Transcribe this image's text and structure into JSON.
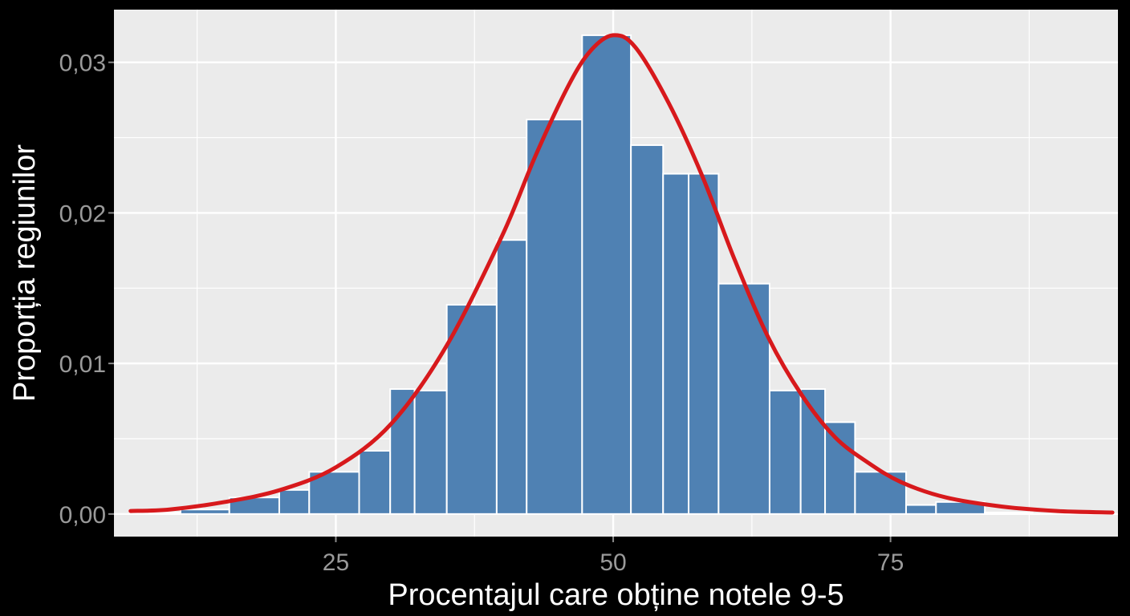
{
  "chart_data": {
    "type": "bar",
    "xlabel": "Procentajul care obține notele 9-5",
    "ylabel": "Proporția regiunilor",
    "xlim": [
      5,
      95.5
    ],
    "ylim": [
      -0.0015,
      0.0335
    ],
    "x_ticks": [
      {
        "value": 25,
        "label": "25"
      },
      {
        "value": 50,
        "label": "50"
      },
      {
        "value": 75,
        "label": "75"
      }
    ],
    "y_ticks": [
      {
        "value": 0,
        "label": "0,00"
      },
      {
        "value": 0.01,
        "label": "0,01"
      },
      {
        "value": 0.02,
        "label": "0,02"
      },
      {
        "value": 0.03,
        "label": "0,03"
      }
    ],
    "x_minor_grid": [
      12.5,
      37.5,
      62.5,
      87.5
    ],
    "y_minor_grid": [
      0.005,
      0.015,
      0.025
    ],
    "bins": [
      {
        "x0": 8.2,
        "x1": 11.0,
        "value": 0.0001
      },
      {
        "x0": 11.0,
        "x1": 15.4,
        "value": 0.0003
      },
      {
        "x0": 15.4,
        "x1": 19.9,
        "value": 0.0011
      },
      {
        "x0": 19.9,
        "x1": 22.6,
        "value": 0.0016
      },
      {
        "x0": 22.6,
        "x1": 27.1,
        "value": 0.0028
      },
      {
        "x0": 27.1,
        "x1": 29.9,
        "value": 0.0042
      },
      {
        "x0": 29.9,
        "x1": 32.1,
        "value": 0.0083
      },
      {
        "x0": 32.1,
        "x1": 35.0,
        "value": 0.0082
      },
      {
        "x0": 35.0,
        "x1": 39.5,
        "value": 0.0139
      },
      {
        "x0": 39.5,
        "x1": 42.2,
        "value": 0.0182
      },
      {
        "x0": 42.2,
        "x1": 47.2,
        "value": 0.0262
      },
      {
        "x0": 47.2,
        "x1": 51.6,
        "value": 0.0318
      },
      {
        "x0": 51.6,
        "x1": 54.5,
        "value": 0.0245
      },
      {
        "x0": 54.5,
        "x1": 56.8,
        "value": 0.0226
      },
      {
        "x0": 56.8,
        "x1": 59.5,
        "value": 0.0226
      },
      {
        "x0": 59.5,
        "x1": 64.1,
        "value": 0.0153
      },
      {
        "x0": 64.1,
        "x1": 66.9,
        "value": 0.0082
      },
      {
        "x0": 66.9,
        "x1": 69.1,
        "value": 0.0083
      },
      {
        "x0": 69.1,
        "x1": 71.8,
        "value": 0.0061
      },
      {
        "x0": 71.8,
        "x1": 76.4,
        "value": 0.0028
      },
      {
        "x0": 76.4,
        "x1": 79.1,
        "value": 0.0006
      },
      {
        "x0": 79.1,
        "x1": 83.5,
        "value": 0.0008
      },
      {
        "x0": 83.5,
        "x1": 87.8,
        "value": 0.0001
      }
    ],
    "density_curve": {
      "color": "#d7191c",
      "points": [
        [
          6.5,
          0.0002
        ],
        [
          10,
          0.0003
        ],
        [
          15,
          0.0008
        ],
        [
          20,
          0.0016
        ],
        [
          25,
          0.0031
        ],
        [
          30,
          0.006
        ],
        [
          35,
          0.0112
        ],
        [
          40,
          0.0185
        ],
        [
          43,
          0.0238
        ],
        [
          46,
          0.0285
        ],
        [
          48,
          0.0308
        ],
        [
          50,
          0.0318
        ],
        [
          52,
          0.031
        ],
        [
          55,
          0.0273
        ],
        [
          58,
          0.0225
        ],
        [
          61,
          0.0168
        ],
        [
          64,
          0.0117
        ],
        [
          67,
          0.0079
        ],
        [
          70,
          0.0051
        ],
        [
          73,
          0.0034
        ],
        [
          76,
          0.0021
        ],
        [
          80,
          0.0011
        ],
        [
          85,
          0.0005
        ],
        [
          90,
          0.0002
        ],
        [
          95,
          0.0001
        ]
      ]
    },
    "grid": true,
    "legend": "none",
    "colors": {
      "bar_fill": "#4f81b3",
      "bar_stroke": "#ffffff",
      "panel_background": "#ebebeb",
      "grid": "#ffffff",
      "page_background": "#000000"
    }
  }
}
